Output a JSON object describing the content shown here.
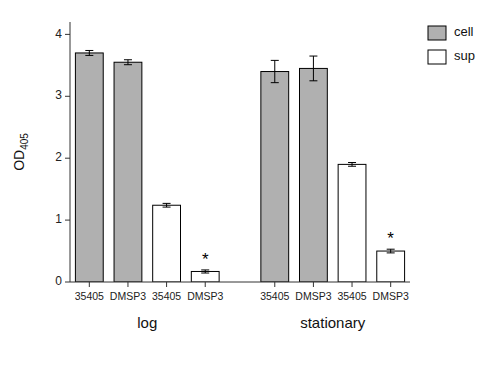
{
  "chart_data": {
    "type": "bar",
    "categories": [
      "35405",
      "DMSP3",
      "35405",
      "DMSP3",
      "35405",
      "DMSP3",
      "35405",
      "DMSP3"
    ],
    "group_labels": [
      "log",
      "stationary"
    ],
    "series": [
      {
        "name": "cell",
        "color": "#b0b0b0",
        "values": [
          3.7,
          3.55,
          null,
          null,
          3.4,
          3.45,
          null,
          null
        ],
        "errors": [
          0.04,
          0.04,
          null,
          null,
          0.18,
          0.2,
          null,
          null
        ]
      },
      {
        "name": "sup",
        "color": "#ffffff",
        "values": [
          null,
          null,
          1.24,
          0.17,
          null,
          null,
          1.9,
          0.5
        ],
        "errors": [
          null,
          null,
          0.03,
          0.025,
          null,
          null,
          0.03,
          0.03
        ]
      }
    ],
    "annotations": [
      {
        "text": "*",
        "category": 3,
        "y": 0.34
      },
      {
        "text": "*",
        "category": 7,
        "y": 0.68
      }
    ],
    "y_label": "OD",
    "y_label_subscript": "405",
    "ylim": [
      0,
      4.2
    ],
    "yticks": [
      0,
      1,
      2,
      3,
      4
    ],
    "grid": false,
    "legend": "upper right"
  }
}
